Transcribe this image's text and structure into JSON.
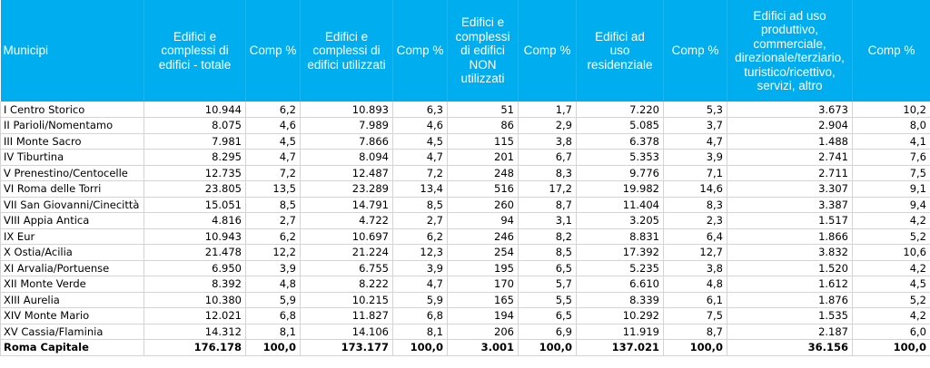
{
  "chart_data": {
    "type": "table",
    "columns": [
      "Municipi",
      "Edifici e\ncomplessi di\nedifici - totale",
      "Comp %",
      "Edifici e\ncomplessi di\nedifici utilizzati",
      "Comp %",
      "Edifici e\ncomplessi\ndi edifici\nNON\nutilizzati",
      "Comp %",
      "Edifici ad\nuso\nresidenziale",
      "Comp %",
      "Edifici ad uso\nproduttivo,\ncommerciale,\ndirezionale/terziario,\nturistico/ricettivo,\nservizi, altro",
      "Comp %"
    ],
    "rows": [
      [
        "I Centro Storico",
        "10.944",
        "6,2",
        "10.893",
        "6,3",
        "51",
        "1,7",
        "7.220",
        "5,3",
        "3.673",
        "10,2"
      ],
      [
        "II Parioli/Nomentamo",
        "8.075",
        "4,6",
        "7.989",
        "4,6",
        "86",
        "2,9",
        "5.085",
        "3,7",
        "2.904",
        "8,0"
      ],
      [
        "III Monte Sacro",
        "7.981",
        "4,5",
        "7.866",
        "4,5",
        "115",
        "3,8",
        "6.378",
        "4,7",
        "1.488",
        "4,1"
      ],
      [
        "IV Tiburtina",
        "8.295",
        "4,7",
        "8.094",
        "4,7",
        "201",
        "6,7",
        "5.353",
        "3,9",
        "2.741",
        "7,6"
      ],
      [
        "V Prenestino/Centocelle",
        "12.735",
        "7,2",
        "12.487",
        "7,2",
        "248",
        "8,3",
        "9.776",
        "7,1",
        "2.711",
        "7,5"
      ],
      [
        "VI Roma delle Torri",
        "23.805",
        "13,5",
        "23.289",
        "13,4",
        "516",
        "17,2",
        "19.982",
        "14,6",
        "3.307",
        "9,1"
      ],
      [
        "VII San Giovanni/Cinecittà",
        "15.051",
        "8,5",
        "14.791",
        "8,5",
        "260",
        "8,7",
        "11.404",
        "8,3",
        "3.387",
        "9,4"
      ],
      [
        "VIII Appia Antica",
        "4.816",
        "2,7",
        "4.722",
        "2,7",
        "94",
        "3,1",
        "3.205",
        "2,3",
        "1.517",
        "4,2"
      ],
      [
        "IX Eur",
        "10.943",
        "6,2",
        "10.697",
        "6,2",
        "246",
        "8,2",
        "8.831",
        "6,4",
        "1.866",
        "5,2"
      ],
      [
        "X Ostia/Acilia",
        "21.478",
        "12,2",
        "21.224",
        "12,3",
        "254",
        "8,5",
        "17.392",
        "12,7",
        "3.832",
        "10,6"
      ],
      [
        "XI Arvalia/Portuense",
        "6.950",
        "3,9",
        "6.755",
        "3,9",
        "195",
        "6,5",
        "5.235",
        "3,8",
        "1.520",
        "4,2"
      ],
      [
        "XII Monte Verde",
        "8.392",
        "4,8",
        "8.222",
        "4,7",
        "170",
        "5,7",
        "6.610",
        "4,8",
        "1.612",
        "4,5"
      ],
      [
        "XIII Aurelia",
        "10.380",
        "5,9",
        "10.215",
        "5,9",
        "165",
        "5,5",
        "8.339",
        "6,1",
        "1.876",
        "5,2"
      ],
      [
        "XIV Monte Mario",
        "12.021",
        "6,8",
        "11.827",
        "6,8",
        "194",
        "6,5",
        "10.292",
        "7,5",
        "1.535",
        "4,2"
      ],
      [
        "XV Cassia/Flaminia",
        "14.312",
        "8,1",
        "14.106",
        "8,1",
        "206",
        "6,9",
        "11.919",
        "8,7",
        "2.187",
        "6,0"
      ]
    ],
    "total_row": [
      "Roma Capitale",
      "176.178",
      "100,0",
      "173.177",
      "100,0",
      "3.001",
      "100,0",
      "137.021",
      "100,0",
      "36.156",
      "100,0"
    ],
    "colors": {
      "header_background": "#00aef0",
      "header_text": "#ffffff",
      "gridline": "#d4d4d4"
    }
  }
}
